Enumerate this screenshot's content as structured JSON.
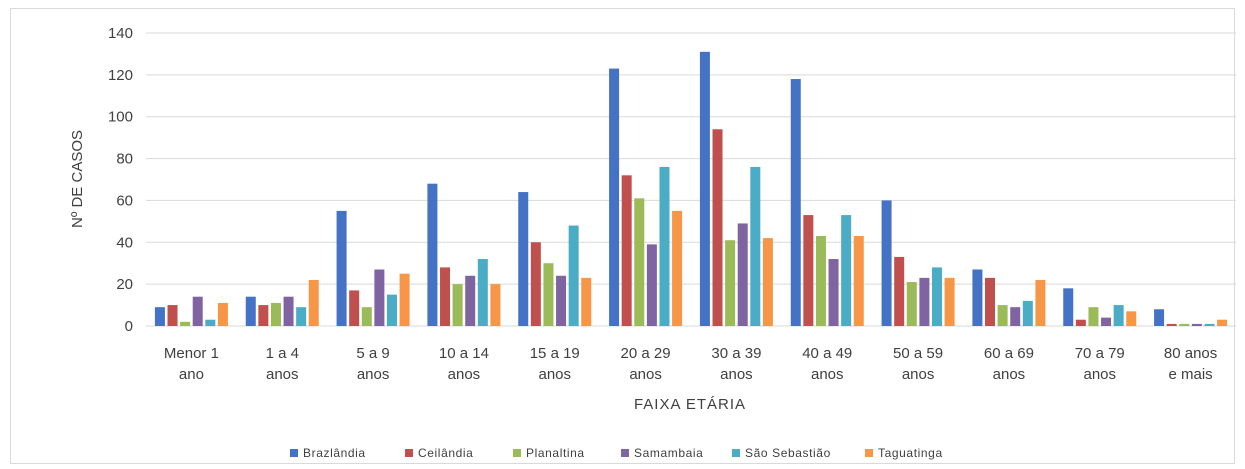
{
  "chart_data": {
    "type": "bar",
    "title": "",
    "xlabel": "FAIXA ETÁRIA",
    "ylabel": "Nº DE CASOS",
    "ylim": [
      0,
      140
    ],
    "yticks": [
      0,
      20,
      40,
      60,
      80,
      100,
      120,
      140
    ],
    "grid": true,
    "legend_position": "bottom",
    "categories": [
      [
        "Menor 1",
        "ano"
      ],
      [
        "1 a 4",
        "anos"
      ],
      [
        "5 a 9",
        "anos"
      ],
      [
        "10 a 14",
        "anos"
      ],
      [
        "15 a 19",
        "anos"
      ],
      [
        "20 a 29",
        "anos"
      ],
      [
        "30 a 39",
        "anos"
      ],
      [
        "40 a 49",
        "anos"
      ],
      [
        "50 a 59",
        "anos"
      ],
      [
        "60 a 69",
        "anos"
      ],
      [
        "70 a 79",
        "anos"
      ],
      [
        "80 anos",
        "e mais"
      ]
    ],
    "series": [
      {
        "name": "Brazlândia",
        "color": "#4472C4",
        "values": [
          9,
          14,
          55,
          68,
          64,
          123,
          131,
          118,
          60,
          27,
          18,
          8
        ]
      },
      {
        "name": "Ceilândia",
        "color": "#C0504D",
        "values": [
          10,
          10,
          17,
          28,
          40,
          72,
          94,
          53,
          33,
          23,
          3,
          1
        ]
      },
      {
        "name": "Planaltina",
        "color": "#9BBB59",
        "values": [
          2,
          11,
          9,
          20,
          30,
          61,
          41,
          43,
          21,
          10,
          9,
          1
        ]
      },
      {
        "name": "Samambaia",
        "color": "#8064A2",
        "values": [
          14,
          14,
          27,
          24,
          24,
          39,
          49,
          32,
          23,
          9,
          4,
          1
        ]
      },
      {
        "name": "São Sebastião",
        "color": "#4BACC6",
        "values": [
          3,
          9,
          15,
          32,
          48,
          76,
          76,
          53,
          28,
          12,
          10,
          1
        ]
      },
      {
        "name": "Taguatinga",
        "color": "#F79646",
        "values": [
          11,
          22,
          25,
          20,
          23,
          55,
          42,
          43,
          23,
          22,
          7,
          3
        ]
      }
    ]
  }
}
